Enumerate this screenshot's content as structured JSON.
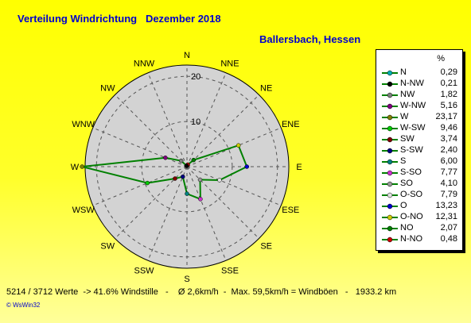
{
  "header": {
    "title": "Verteilung Windrichtung   Dezember 2018",
    "location": "Ballersbach, Hessen"
  },
  "chart_data": {
    "type": "radar",
    "directions": [
      "N",
      "NNE",
      "NE",
      "ENE",
      "E",
      "ESE",
      "SE",
      "SSE",
      "S",
      "SSW",
      "SW",
      "WSW",
      "W",
      "WNW",
      "NW",
      "NNW"
    ],
    "radial_ticks": [
      10,
      20
    ],
    "rmax": 22.5,
    "values_percent": [
      0.29,
      0.48,
      2.07,
      12.31,
      13.23,
      7.79,
      4.1,
      7.77,
      6.0,
      2.4,
      3.74,
      9.46,
      23.17,
      5.16,
      1.82,
      0.21
    ],
    "line_color": "#008000"
  },
  "legend": {
    "unit": "%",
    "items": [
      {
        "name": "N",
        "value": "0,29",
        "color": "#00b0b0"
      },
      {
        "name": "N-NW",
        "value": "0,21",
        "color": "#000000"
      },
      {
        "name": "NW",
        "value": "1,82",
        "color": "#808080"
      },
      {
        "name": "W-NW",
        "value": "5,16",
        "color": "#800080"
      },
      {
        "name": "W",
        "value": "23,17",
        "color": "#808000"
      },
      {
        "name": "W-SW",
        "value": "9,46",
        "color": "#00cc00"
      },
      {
        "name": "SW",
        "value": "3,74",
        "color": "#800000"
      },
      {
        "name": "S-SW",
        "value": "2,40",
        "color": "#000080"
      },
      {
        "name": "S",
        "value": "6,00",
        "color": "#008080"
      },
      {
        "name": "S-SO",
        "value": "7,77",
        "color": "#cc33cc"
      },
      {
        "name": "SO",
        "value": "4,10",
        "color": "#999999"
      },
      {
        "name": "O-SO",
        "value": "7,79",
        "color": "#e0e0e0"
      },
      {
        "name": "O",
        "value": "13,23",
        "color": "#0000cc"
      },
      {
        "name": "O-NO",
        "value": "12,31",
        "color": "#cccc00"
      },
      {
        "name": "NO",
        "value": "2,07",
        "color": "#008000"
      },
      {
        "name": "N-NO",
        "value": "0,48",
        "color": "#cc0000"
      }
    ]
  },
  "footer": {
    "stats": "5214 / 3712 Werte  -> 41.6% Windstille   -    Ø 2,6km/h  -  Max. 59,5km/h = Windböen   -   1933.2 km",
    "credit": "© WsWin32"
  }
}
